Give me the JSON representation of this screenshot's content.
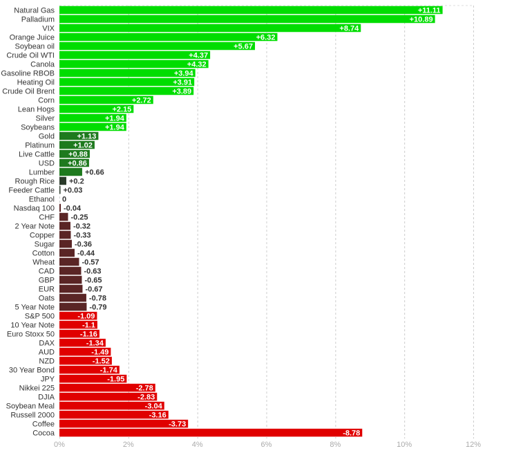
{
  "chart_data": {
    "type": "bar",
    "orientation": "horizontal",
    "title": "",
    "xlabel": "",
    "ylabel": "",
    "xlim": [
      0,
      12
    ],
    "x_tick_labels": [
      "0%",
      "2%",
      "4%",
      "6%",
      "8%",
      "10%",
      "12%"
    ],
    "grid": true,
    "colors": {
      "strong_positive": "#00dd00",
      "mild_positive": "#1e7a1e",
      "neutral_positive": "#2a3a2a",
      "mild_negative": "#5a2525",
      "strong_negative": "#e00000"
    },
    "categories": [
      "Natural Gas",
      "Palladium",
      "VIX",
      "Orange Juice",
      "Soybean oil",
      "Crude Oil WTI",
      "Canola",
      "Gasoline RBOB",
      "Heating Oil",
      "Crude Oil Brent",
      "Corn",
      "Lean Hogs",
      "Silver",
      "Soybeans",
      "Gold",
      "Platinum",
      "Live Cattle",
      "USD",
      "Lumber",
      "Rough Rice",
      "Feeder Cattle",
      "Ethanol",
      "Nasdaq 100",
      "CHF",
      "2 Year Note",
      "Copper",
      "Sugar",
      "Cotton",
      "Wheat",
      "CAD",
      "GBP",
      "EUR",
      "Oats",
      "5 Year Note",
      "S&P 500",
      "10 Year Note",
      "Euro Stoxx 50",
      "DAX",
      "AUD",
      "NZD",
      "30 Year Bond",
      "JPY",
      "Nikkei 225",
      "DJIA",
      "Soybean Meal",
      "Russell 2000",
      "Coffee",
      "Cocoa"
    ],
    "values": [
      11.11,
      10.89,
      8.74,
      6.32,
      5.67,
      4.37,
      4.32,
      3.94,
      3.91,
      3.89,
      2.72,
      2.15,
      1.94,
      1.94,
      1.13,
      1.02,
      0.88,
      0.86,
      0.66,
      0.2,
      0.03,
      0,
      -0.04,
      -0.25,
      -0.32,
      -0.33,
      -0.36,
      -0.44,
      -0.57,
      -0.63,
      -0.65,
      -0.67,
      -0.78,
      -0.79,
      -1.09,
      -1.1,
      -1.16,
      -1.34,
      -1.49,
      -1.52,
      -1.74,
      -1.95,
      -2.78,
      -2.83,
      -3.04,
      -3.16,
      -3.73,
      -8.78
    ],
    "value_labels": [
      "+11.11",
      "+10.89",
      "+8.74",
      "+6.32",
      "+5.67",
      "+4.37",
      "+4.32",
      "+3.94",
      "+3.91",
      "+3.89",
      "+2.72",
      "+2.15",
      "+1.94",
      "+1.94",
      "+1.13",
      "+1.02",
      "+0.88",
      "+0.86",
      "+0.66",
      "+0.2",
      "+0.03",
      "0",
      "-0.04",
      "-0.25",
      "-0.32",
      "-0.33",
      "-0.36",
      "-0.44",
      "-0.57",
      "-0.63",
      "-0.65",
      "-0.67",
      "-0.78",
      "-0.79",
      "-1.09",
      "-1.1",
      "-1.16",
      "-1.34",
      "-1.49",
      "-1.52",
      "-1.74",
      "-1.95",
      "-2.78",
      "-2.83",
      "-3.04",
      "-3.16",
      "-3.73",
      "-8.78"
    ]
  }
}
